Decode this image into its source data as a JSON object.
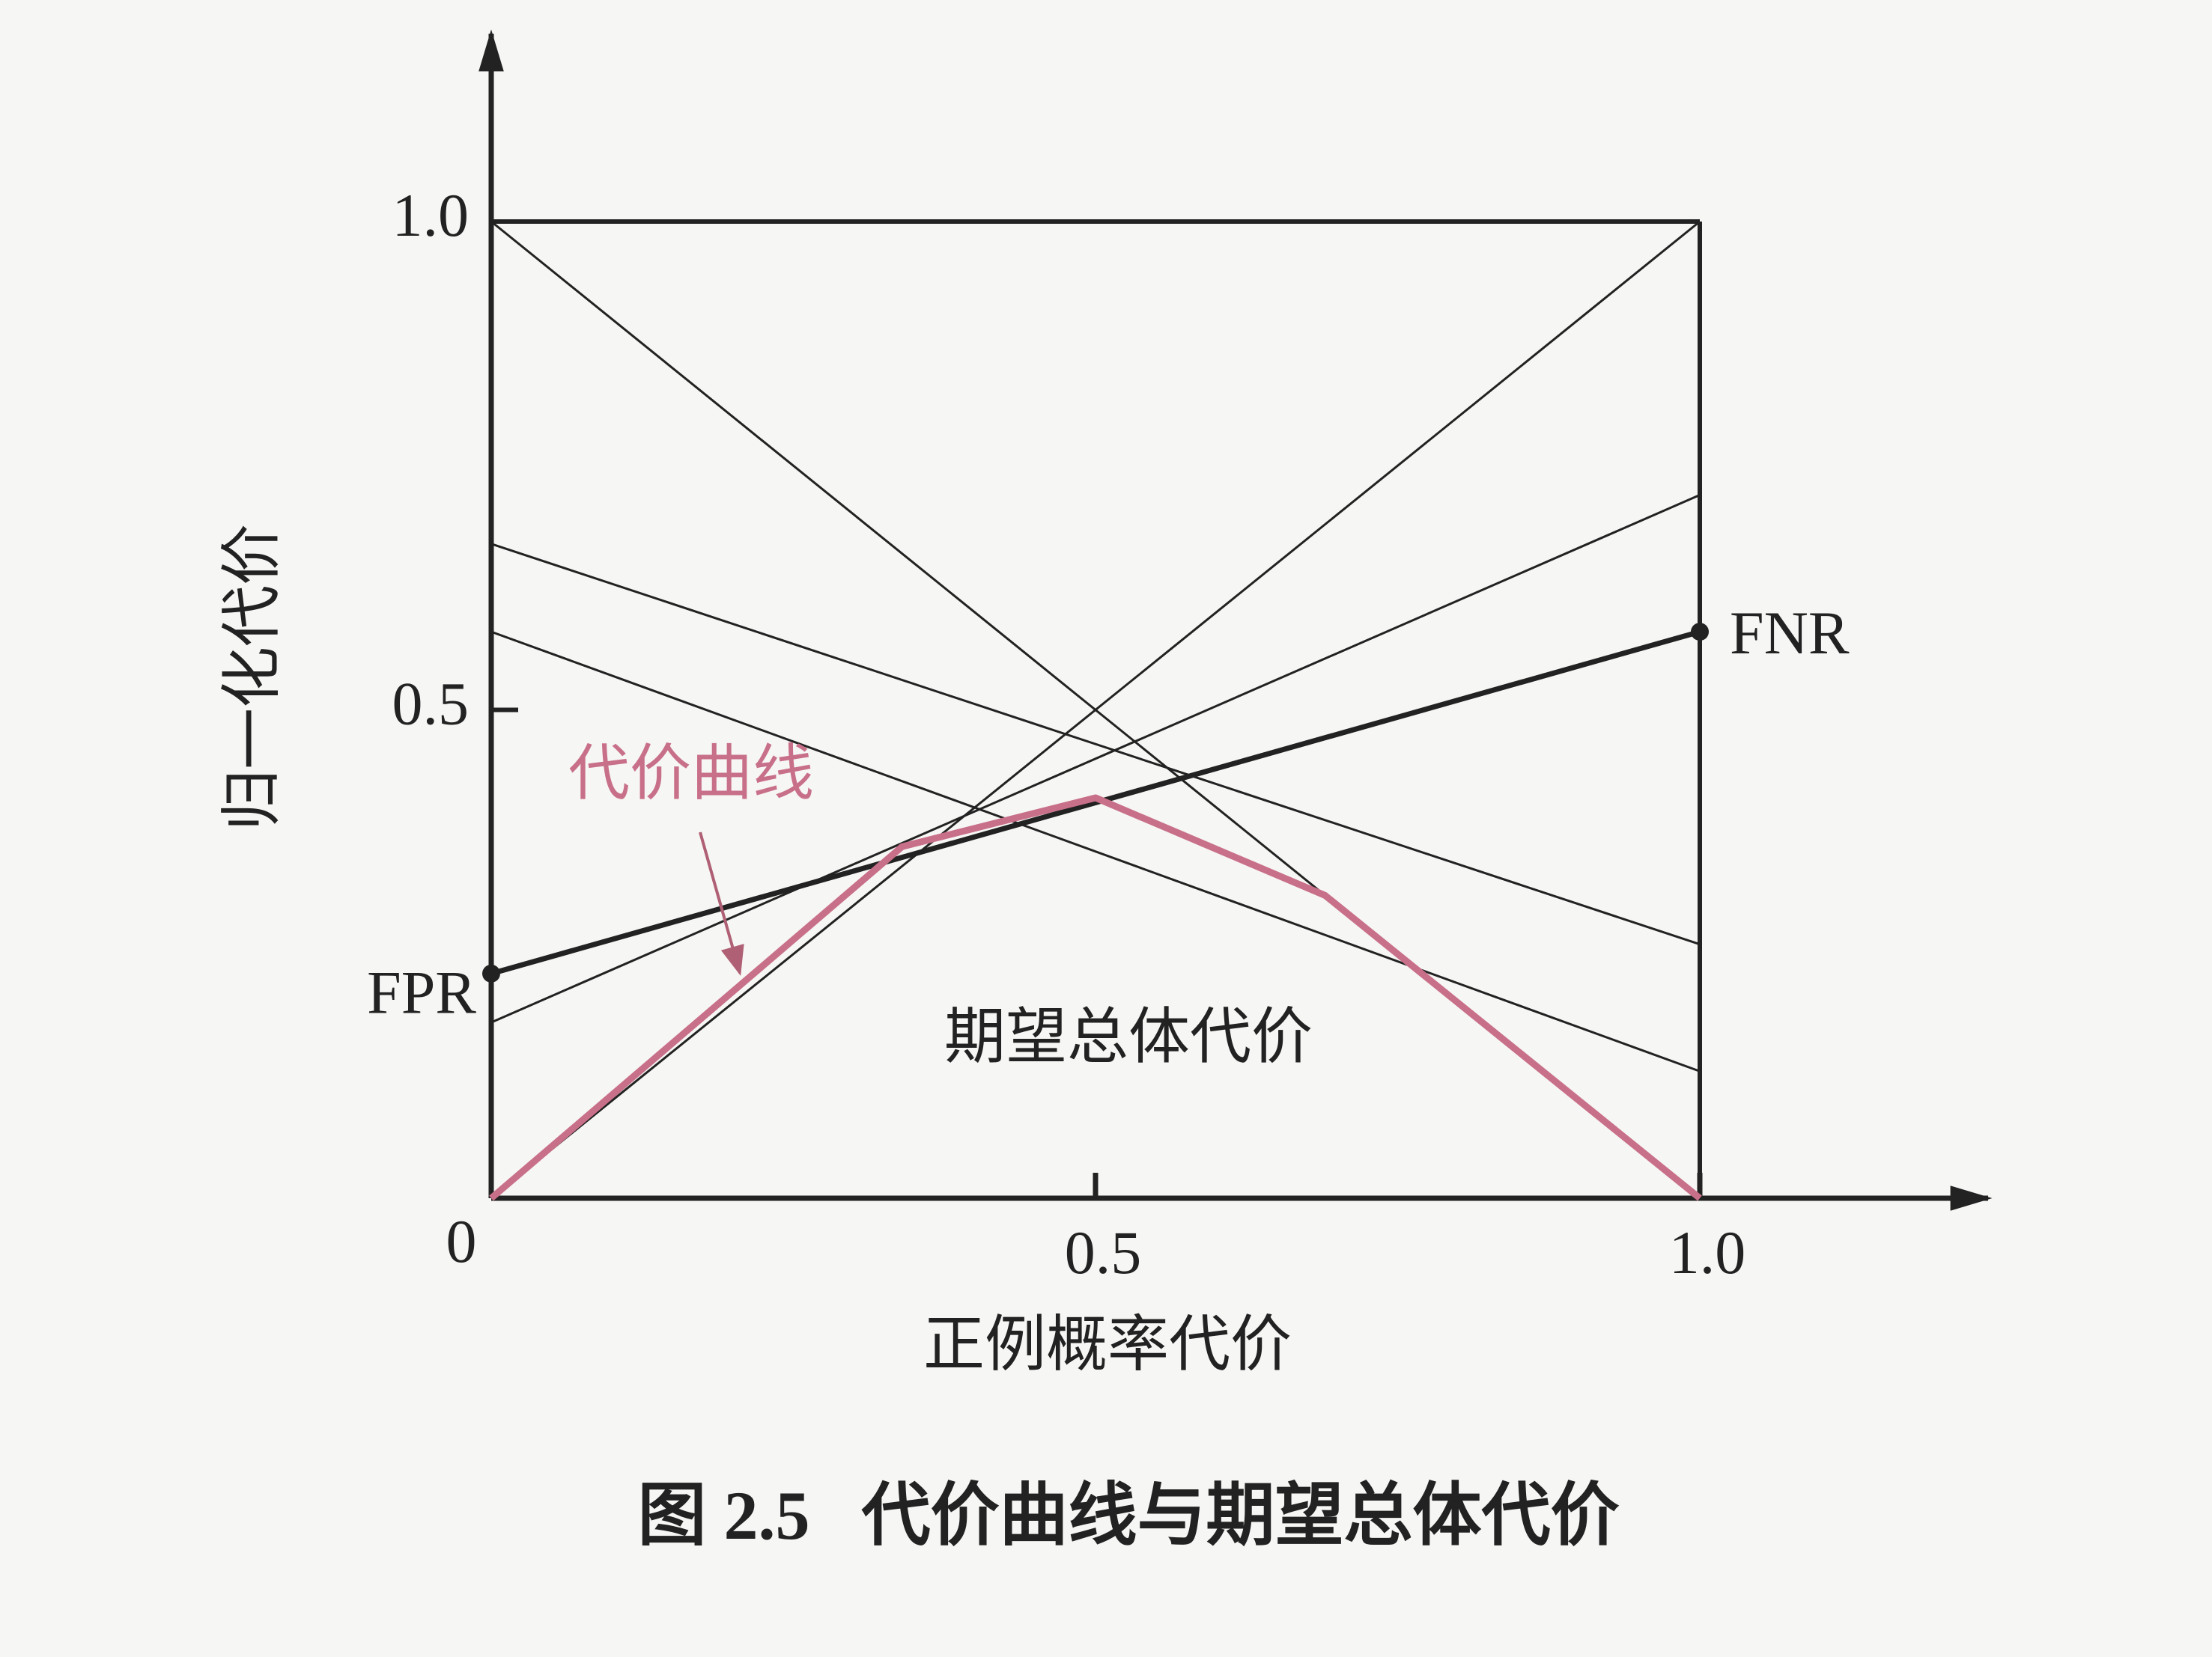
{
  "chart_data": {
    "type": "line",
    "title": "图 2.5   代价曲线与期望总体代价",
    "xlabel": "正例概率代价",
    "ylabel": "归一化代价",
    "xlim": [
      0,
      1
    ],
    "ylim": [
      0,
      1
    ],
    "xticks": [
      0,
      0.5,
      {
        "value": 1,
        "label": "1.0"
      }
    ],
    "yticks": [
      0.5,
      {
        "value": 1,
        "label": "1.0"
      }
    ],
    "x": [
      0,
      1
    ],
    "lines": [
      {
        "values": [
          1,
          0
        ]
      },
      {
        "values": [
          0,
          1
        ]
      },
      {
        "values": [
          0.23,
          0.58
        ],
        "bold": true
      },
      {
        "values": [
          0.67,
          0.26
        ]
      },
      {
        "values": [
          0.58,
          0.13
        ]
      },
      {
        "values": [
          0.18,
          0.72
        ]
      }
    ],
    "fpr_label": "FPR",
    "fnr_label": "FNR",
    "cost_curve": {
      "name": "代价曲线",
      "color": "#c8708a",
      "x": [
        0,
        0.34,
        0.5,
        0.69,
        1
      ],
      "values": [
        0,
        0.36,
        0.41,
        0.31,
        0
      ]
    },
    "area_label": "期望总体代价"
  }
}
